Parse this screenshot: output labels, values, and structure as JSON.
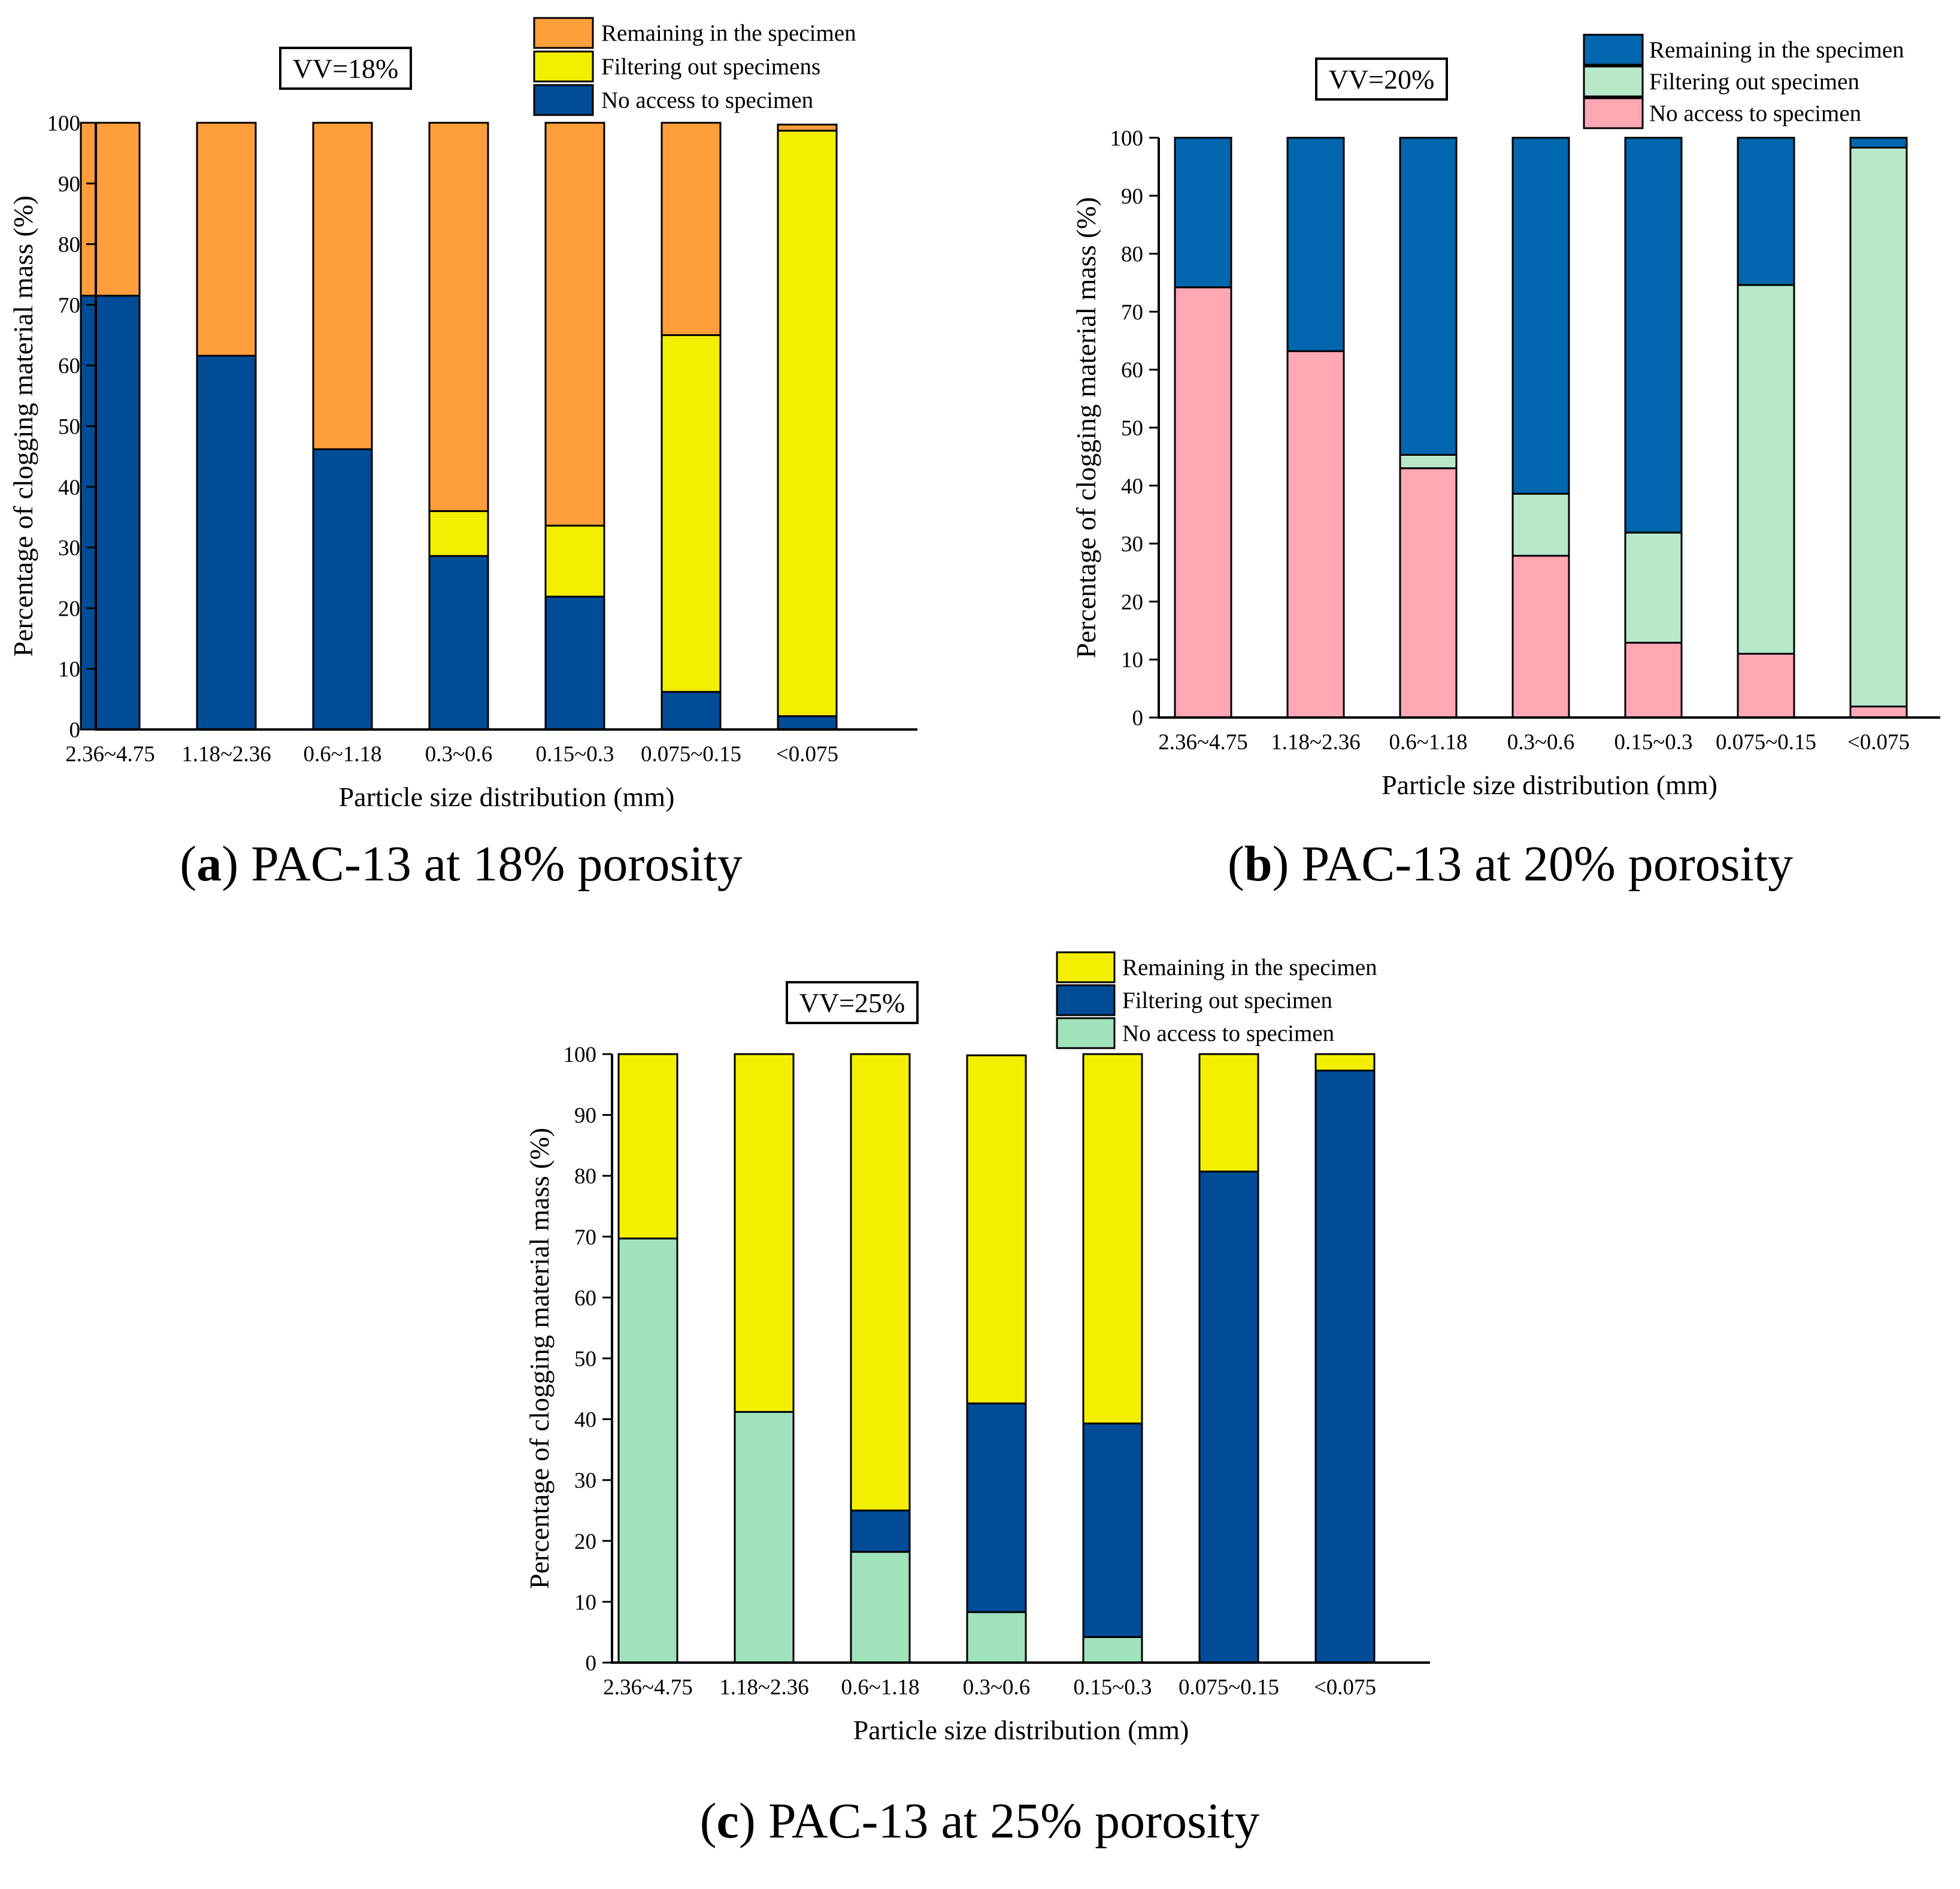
{
  "chart_data": [
    {
      "type": "bar",
      "stacked": true,
      "panel_letter": "a",
      "caption": "PAC-13 at 18% porosity",
      "annotation": "VV=18%",
      "xlabel": "Particle size distribution (mm)",
      "ylabel": "Percentage of clogging material mass (%)",
      "ylim": [
        0,
        100
      ],
      "yticks": [
        0,
        10,
        20,
        30,
        40,
        50,
        60,
        70,
        80,
        90,
        100
      ],
      "grid": false,
      "legend_position": "top-right",
      "categories": [
        "2.36~4.75",
        "1.18~2.36",
        "0.6~1.18",
        "0.3~0.6",
        "0.15~0.3",
        "0.075~0.15",
        "<0.075"
      ],
      "series": [
        {
          "name": "No access to specimen",
          "color": "#004c97",
          "values": [
            71.5,
            61.6,
            46.2,
            28.6,
            21.9,
            6.2,
            2.2
          ]
        },
        {
          "name": "Filtering out specimens",
          "color": "#f2f000",
          "values": [
            0,
            0,
            0,
            7.4,
            11.7,
            58.8,
            96.5
          ]
        },
        {
          "name": "Remaining in the specimen",
          "color": "#ff9e3a",
          "values": [
            28.5,
            38.4,
            53.8,
            64.0,
            66.4,
            35.0,
            1.0
          ]
        }
      ]
    },
    {
      "type": "bar",
      "stacked": true,
      "panel_letter": "b",
      "caption": "PAC-13 at 20% porosity",
      "annotation": "VV=20%",
      "xlabel": "Particle size distribution (mm)",
      "ylabel": "Percentage of clogging material mass (%)",
      "ylim": [
        0,
        100
      ],
      "yticks": [
        0,
        10,
        20,
        30,
        40,
        50,
        60,
        70,
        80,
        90,
        100
      ],
      "grid": false,
      "legend_position": "top-right",
      "categories": [
        "2.36~4.75",
        "1.18~2.36",
        "0.6~1.18",
        "0.3~0.6",
        "0.15~0.3",
        "0.075~0.15",
        "<0.075"
      ],
      "series": [
        {
          "name": "No access to specimen",
          "color": "#ffa8b4",
          "values": [
            74.2,
            63.2,
            43.0,
            27.9,
            12.9,
            11.0,
            1.9
          ]
        },
        {
          "name": "Filtering out specimen",
          "color": "#b7e8ca",
          "values": [
            0,
            0,
            2.3,
            10.7,
            19.0,
            63.6,
            96.4
          ]
        },
        {
          "name": "Remaining in the specimen",
          "color": "#0066ad",
          "values": [
            25.8,
            36.8,
            54.7,
            61.4,
            68.1,
            25.4,
            1.7
          ]
        }
      ]
    },
    {
      "type": "bar",
      "stacked": true,
      "panel_letter": "c",
      "caption": "PAC-13 at 25% porosity",
      "annotation": "VV=25%",
      "xlabel": "Particle size distribution (mm)",
      "ylabel": "Percentage of clogging material mass (%)",
      "ylim": [
        0,
        100
      ],
      "yticks": [
        0,
        10,
        20,
        30,
        40,
        50,
        60,
        70,
        80,
        90,
        100
      ],
      "grid": false,
      "legend_position": "top-right",
      "categories": [
        "2.36~4.75",
        "1.18~2.36",
        "0.6~1.18",
        "0.3~0.6",
        "0.15~0.3",
        "0.075~0.15",
        "<0.075"
      ],
      "series": [
        {
          "name": "No access to specimen",
          "color": "#9fe2bb",
          "values": [
            69.7,
            41.2,
            18.2,
            8.3,
            4.2,
            0,
            0
          ]
        },
        {
          "name": "Filtering out specimen",
          "color": "#004c97",
          "values": [
            0,
            0,
            6.8,
            34.3,
            35.1,
            80.7,
            97.3
          ]
        },
        {
          "name": "Remaining in the specimen",
          "color": "#f2f000",
          "values": [
            30.3,
            58.8,
            75.0,
            57.2,
            60.7,
            19.3,
            2.7
          ]
        }
      ]
    }
  ]
}
